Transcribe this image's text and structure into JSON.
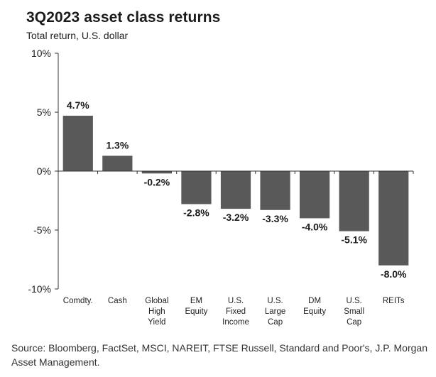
{
  "chart_data": {
    "type": "bar",
    "title": "3Q2023 asset class returns",
    "subtitle": "Total return, U.S. dollar",
    "categories": [
      [
        "Comdty."
      ],
      [
        "Cash"
      ],
      [
        "Global",
        "High",
        "Yield"
      ],
      [
        "EM",
        "Equity"
      ],
      [
        "U.S.",
        "Fixed",
        "Income"
      ],
      [
        "U.S.",
        "Large",
        "Cap"
      ],
      [
        "DM",
        "Equity"
      ],
      [
        "U.S.",
        "Small",
        "Cap"
      ],
      [
        "REITs"
      ]
    ],
    "values": [
      4.7,
      1.3,
      -0.2,
      -2.8,
      -3.2,
      -3.3,
      -4.0,
      -5.1,
      -8.0
    ],
    "data_labels": [
      "4.7%",
      "1.3%",
      "-0.2%",
      "-2.8%",
      "-3.2%",
      "-3.3%",
      "-4.0%",
      "-5.1%",
      "-8.0%"
    ],
    "ylim": [
      -10,
      10
    ],
    "yticks": [
      10,
      5,
      0,
      -5,
      -10
    ],
    "ytick_labels": [
      "10%",
      "5%",
      "0%",
      "-5%",
      "-10%"
    ],
    "xlabel": "",
    "ylabel": "",
    "grid": false,
    "bar_color": "#595959"
  },
  "source": "Source: Bloomberg, FactSet, MSCI, NAREIT, FTSE Russell, Standard and Poor's, J.P. Morgan Asset Management."
}
